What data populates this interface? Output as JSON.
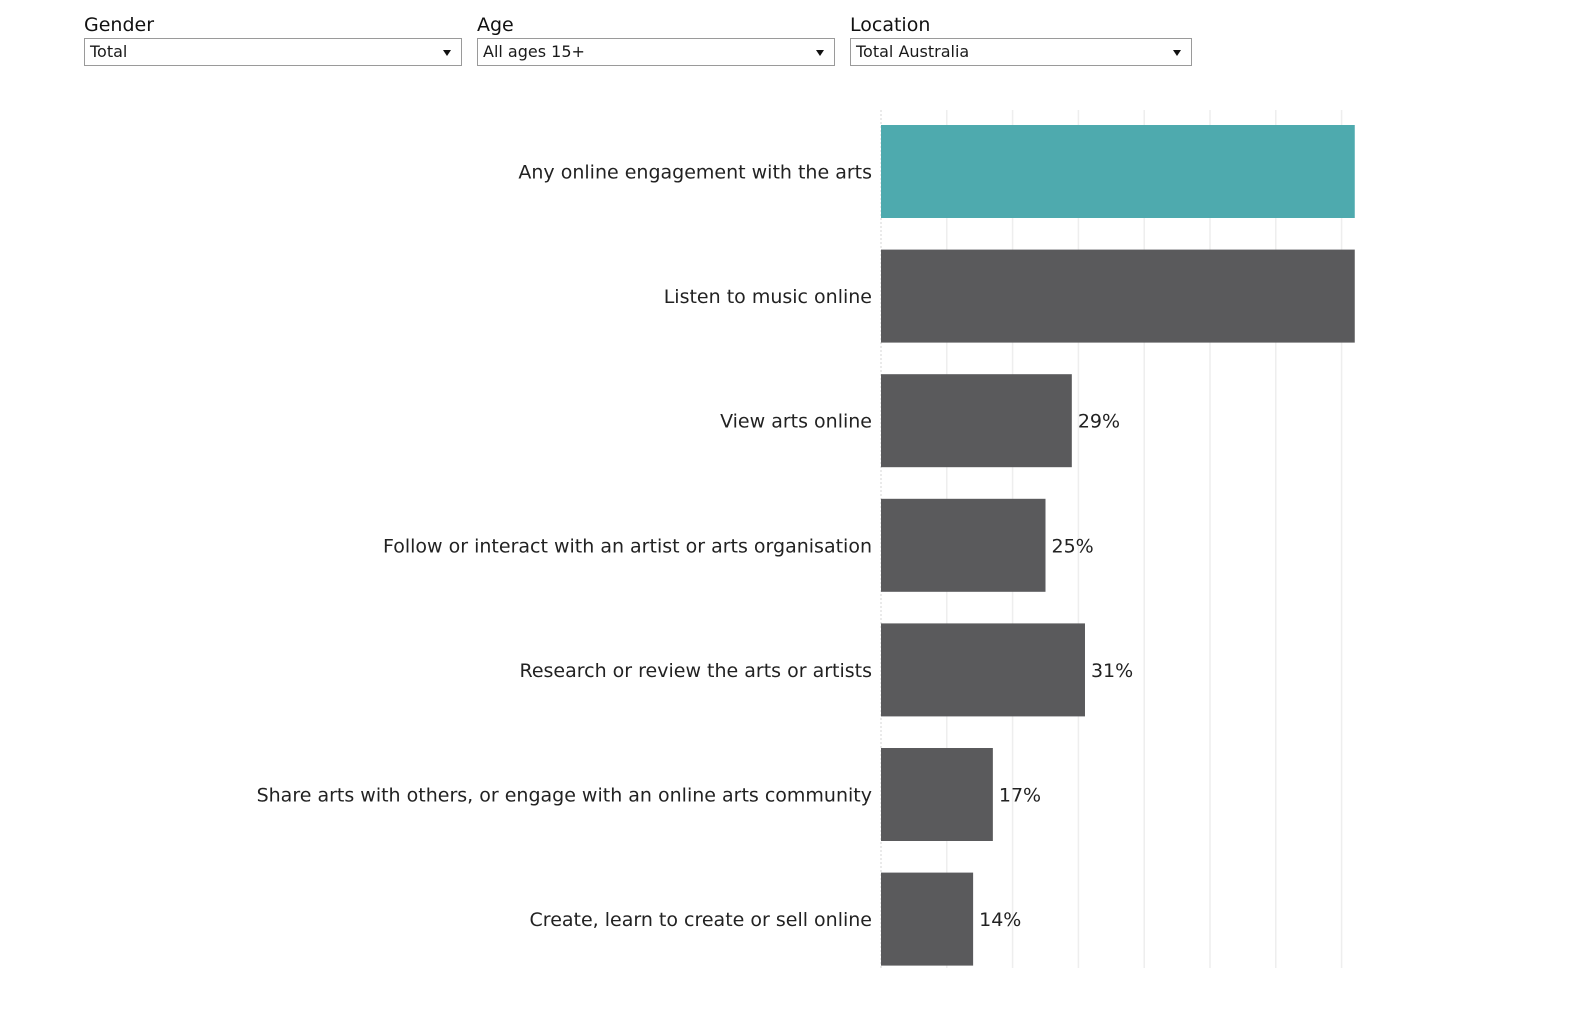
{
  "filters": [
    {
      "label": "Gender",
      "value": "Total"
    },
    {
      "label": "Age",
      "value": "All ages 15+"
    },
    {
      "label": "Location",
      "value": "Total Australia"
    }
  ],
  "colors": {
    "highlight": "#4eaaae",
    "bar": "#5a5a5c",
    "grid": "#eeeeee",
    "text": "#222222"
  },
  "chart_data": {
    "type": "bar",
    "orientation": "horizontal",
    "title": "",
    "xlabel": "",
    "ylabel": "",
    "xlim": [
      0,
      72
    ],
    "grid": true,
    "categories": [
      "Any online engagement with the arts",
      "Listen to music online",
      "View arts online",
      "Follow or interact with an artist or arts organisation",
      "Research or review the arts or artists",
      "Share arts with others, or engage with an online arts community",
      "Create, learn to create or sell online"
    ],
    "values": [
      72,
      72,
      29,
      25,
      31,
      17,
      14
    ],
    "labels": [
      "",
      "",
      "29%",
      "25%",
      "31%",
      "17%",
      "14%"
    ],
    "highlight_index": 0,
    "note": "First two bars extend beyond the visible range; their value labels are not shown"
  }
}
